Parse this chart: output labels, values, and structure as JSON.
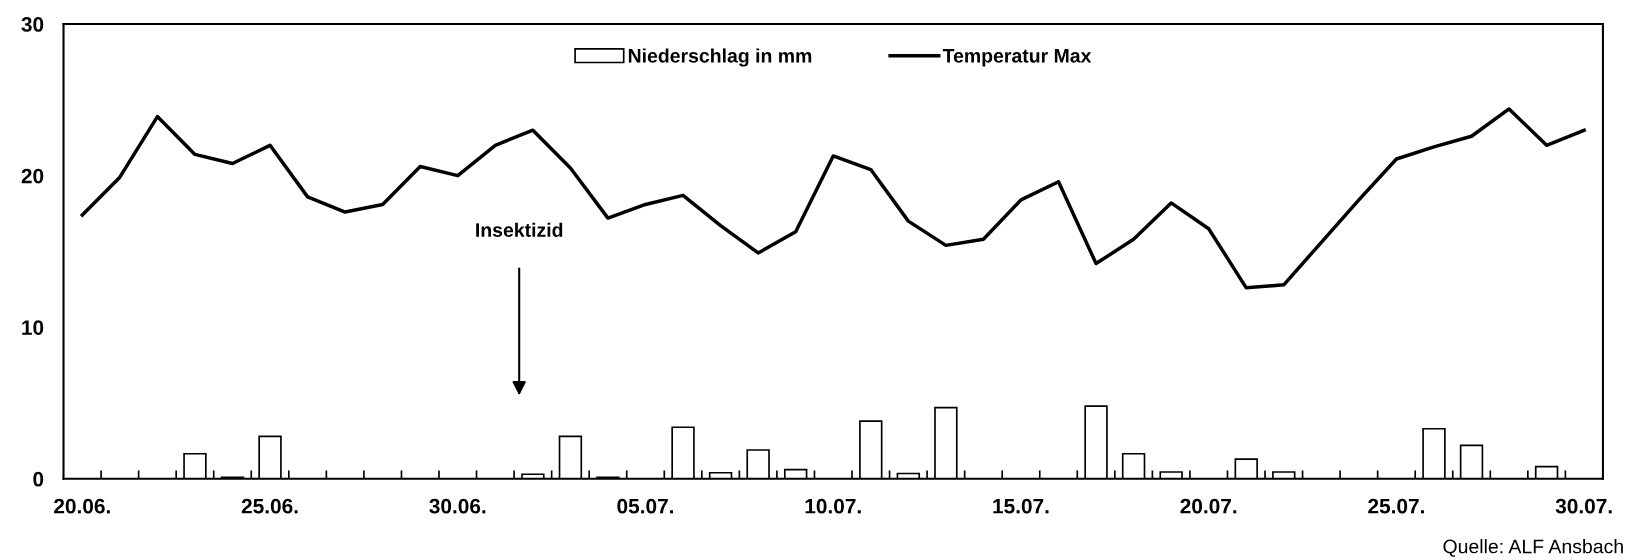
{
  "chart_data": {
    "type": "bar",
    "categories": [
      "20.06.",
      null,
      null,
      null,
      null,
      "25.06.",
      null,
      null,
      null,
      null,
      "30.06.",
      null,
      null,
      null,
      null,
      "05.07.",
      null,
      null,
      null,
      null,
      "10.07.",
      null,
      null,
      null,
      null,
      "15.07.",
      null,
      null,
      null,
      null,
      "20.07.",
      null,
      null,
      null,
      null,
      "25.07.",
      null,
      null,
      null,
      null,
      "30.07."
    ],
    "series": [
      {
        "name": "Niederschlag in mm",
        "color": "#ffffff",
        "values": [
          null,
          null,
          null,
          1.65,
          0.1,
          2.8,
          null,
          null,
          null,
          null,
          null,
          null,
          0.3,
          2.8,
          0.1,
          null,
          3.4,
          0.4,
          1.9,
          0.6,
          null,
          3.8,
          0.35,
          4.7,
          null,
          null,
          null,
          4.8,
          1.65,
          0.45,
          null,
          1.3,
          0.45,
          null,
          null,
          null,
          3.3,
          2.2,
          null,
          0.8,
          null
        ]
      },
      {
        "name": "Temperatur Max",
        "type": "line",
        "color": "#000000",
        "values": [
          17.4,
          19.9,
          23.9,
          21.4,
          20.8,
          22.0,
          18.6,
          17.6,
          18.1,
          20.6,
          20.0,
          22.0,
          23.0,
          20.5,
          17.2,
          18.1,
          18.7,
          16.7,
          14.9,
          16.3,
          21.3,
          20.4,
          17.0,
          15.4,
          15.8,
          18.4,
          19.6,
          14.2,
          15.8,
          18.2,
          16.5,
          12.6,
          12.8,
          15.6,
          18.4,
          21.1,
          21.9,
          22.6,
          24.4,
          22.0,
          23.0
        ]
      }
    ],
    "ylim": [
      0,
      30
    ],
    "yticks": [
      0,
      10,
      20,
      30
    ],
    "grid": false,
    "legend": "top",
    "annotations": [
      "Insektizid",
      "Quelle: ALF Ansbach"
    ]
  }
}
